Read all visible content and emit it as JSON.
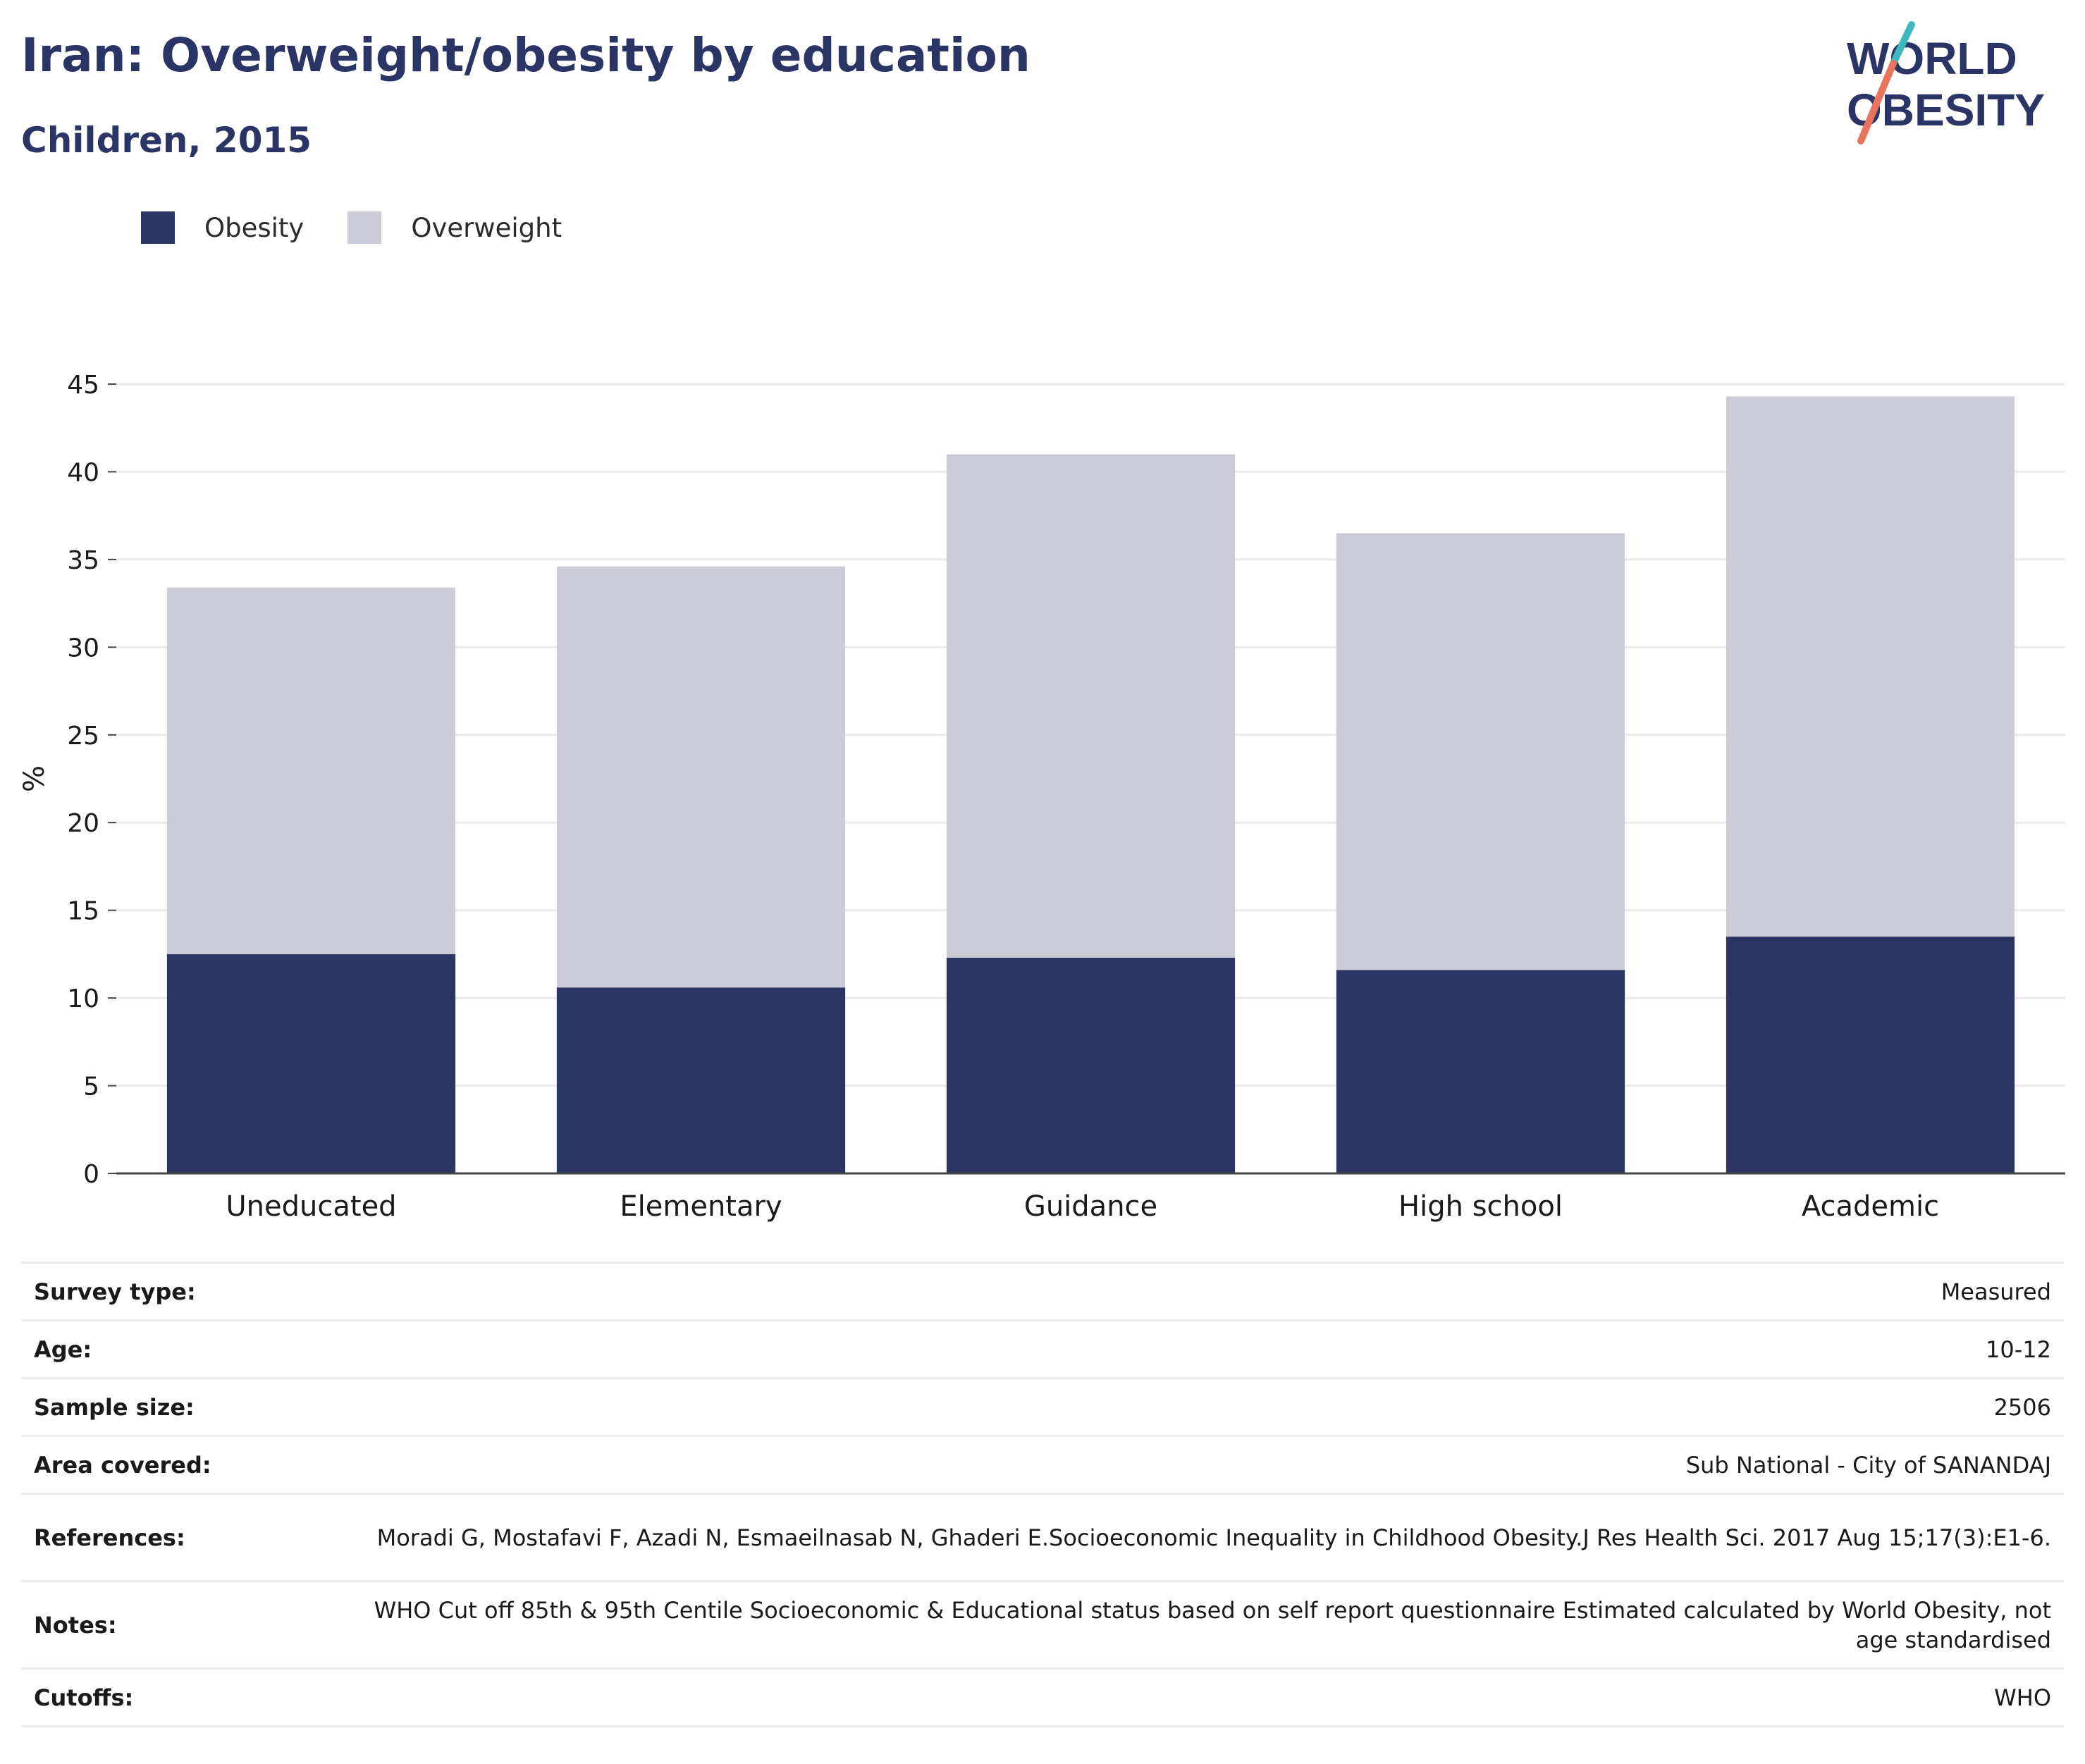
{
  "title": "Iran: Overweight/obesity by education",
  "subtitle": "Children, 2015",
  "logo": {
    "line1": "WORLD",
    "line2": "OBESITY"
  },
  "colors": {
    "obesity": "#2b3665",
    "overweight": "#cbccd8",
    "text": "#2b3565"
  },
  "legend": [
    {
      "label": "Obesity",
      "color": "#2b3665"
    },
    {
      "label": "Overweight",
      "color": "#cbccd8"
    }
  ],
  "chart_data": {
    "type": "bar",
    "stacked": true,
    "categories": [
      "Uneducated",
      "Elementary",
      "Guidance",
      "High school",
      "Academic"
    ],
    "series": [
      {
        "name": "Obesity",
        "values": [
          12.5,
          10.6,
          12.3,
          11.6,
          13.5
        ]
      },
      {
        "name": "Overweight",
        "values": [
          20.9,
          24.0,
          28.7,
          24.9,
          30.8
        ]
      }
    ],
    "ylabel": "%",
    "ylim": [
      0,
      45
    ],
    "yticks": [
      0,
      5,
      10,
      15,
      20,
      25,
      30,
      35,
      40,
      45
    ],
    "grid": true,
    "legend_position": "top-left"
  },
  "info": [
    {
      "key": "Survey type:",
      "value": "Measured"
    },
    {
      "key": "Age:",
      "value": "10-12"
    },
    {
      "key": "Sample size:",
      "value": "2506"
    },
    {
      "key": "Area covered:",
      "value": "Sub National - City of SANANDAJ"
    },
    {
      "key": "References:",
      "value": "Moradi G, Mostafavi F, Azadi N, Esmaeilnasab N, Ghaderi E.Socioeconomic Inequality in Childhood Obesity.J Res Health Sci. 2017 Aug 15;17(3):E1-6."
    },
    {
      "key": "Notes:",
      "value": "WHO Cut off 85th & 95th Centile Socioeconomic & Educational status based on self report questionnaire Estimated calculated by World Obesity, not age standardised"
    },
    {
      "key": "Cutoffs:",
      "value": "WHO"
    }
  ]
}
